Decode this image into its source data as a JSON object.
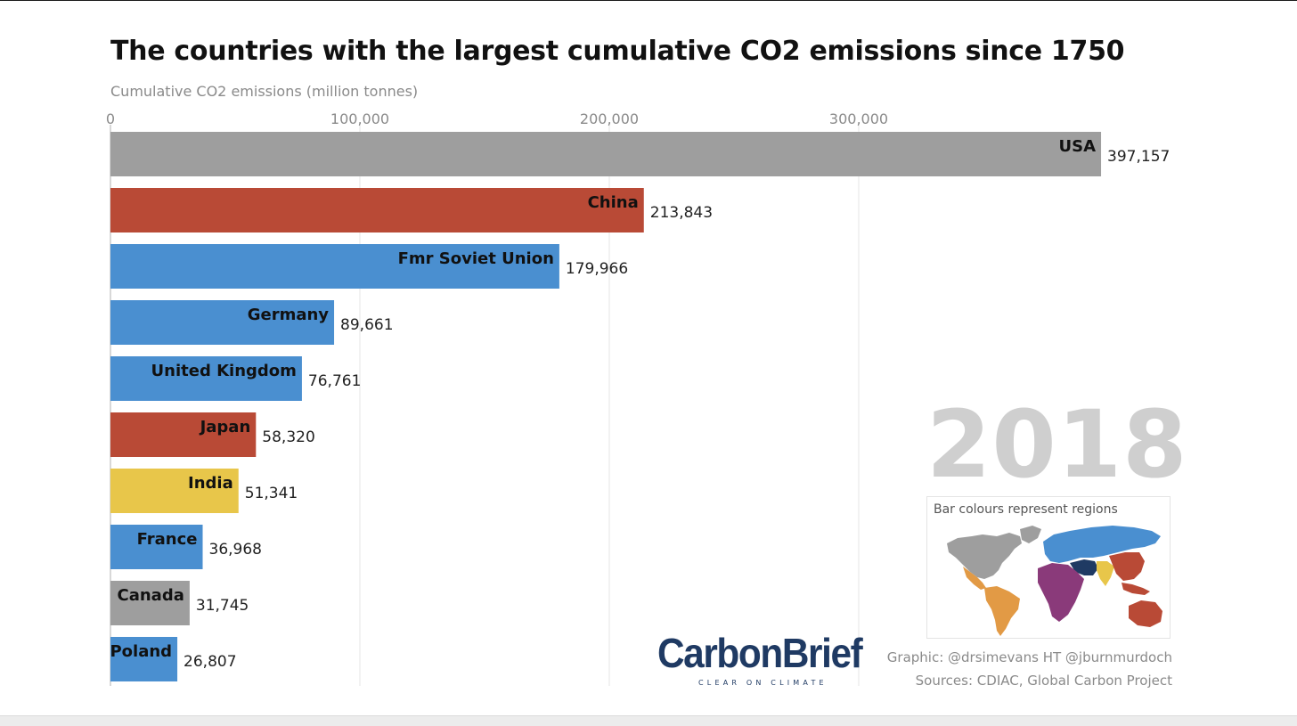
{
  "colors": {
    "North America": "#9e9e9e",
    "Asia-Pacific": "#b94a36",
    "Europe & Eurasia": "#4a8fd0",
    "India & South Asia": "#e8c64a",
    "gridline": "#e4e4e4",
    "axis": "#cccccc"
  },
  "chart_data": {
    "type": "bar",
    "orientation": "horizontal",
    "title": "The countries with the largest cumulative CO2 emissions since 1750",
    "xlabel": "Cumulative CO2 emissions (million tonnes)",
    "ylabel": "",
    "xlim": [
      0,
      400000
    ],
    "ticks": [
      0,
      100000,
      200000,
      300000
    ],
    "tick_labels": [
      "0",
      "100,000",
      "200,000",
      "300,000"
    ],
    "grid": true,
    "year": "2018",
    "categories": [
      "USA",
      "China",
      "Fmr Soviet Union",
      "Germany",
      "United Kingdom",
      "Japan",
      "India",
      "France",
      "Canada",
      "Poland"
    ],
    "values": [
      397157,
      213843,
      179966,
      89661,
      76761,
      58320,
      51341,
      36968,
      31745,
      26807
    ],
    "value_labels": [
      "397,157",
      "213,843",
      "179,966",
      "89,661",
      "76,761",
      "58,320",
      "51,341",
      "36,968",
      "31,745",
      "26,807"
    ],
    "regions": [
      "North America",
      "Asia-Pacific",
      "Europe & Eurasia",
      "Europe & Eurasia",
      "Europe & Eurasia",
      "Asia-Pacific",
      "India & South Asia",
      "Europe & Eurasia",
      "North America",
      "Europe & Eurasia"
    ],
    "legend": {
      "title": "Bar colours represent regions",
      "placement": "bottom-right"
    }
  },
  "brand": {
    "name": "CarbonBrief",
    "tagline": "CLEAR ON CLIMATE"
  },
  "credits": {
    "graphic": "Graphic: @drsimevans HT @jburnmurdoch",
    "sources": "Sources: CDIAC, Global Carbon Project"
  },
  "icons": {
    "legend_map": "world-map-icon"
  }
}
